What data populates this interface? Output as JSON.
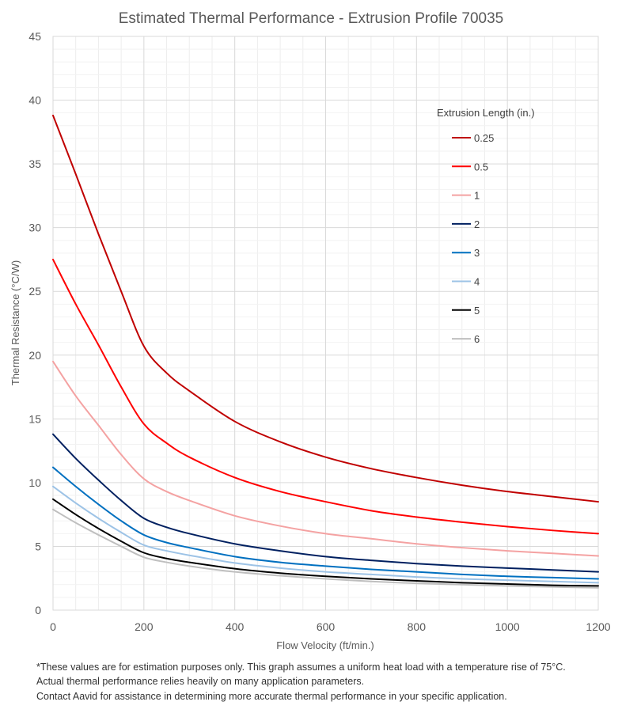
{
  "chart_data": {
    "type": "line",
    "title": "Estimated Thermal Performance - Extrusion Profile 70035",
    "xlabel": "Flow Velocity (ft/min.)",
    "ylabel": "Thermal Resistance (°C/W)",
    "xlim": [
      0,
      1200
    ],
    "ylim": [
      0,
      45
    ],
    "x_ticks": [
      "0",
      "200",
      "400",
      "600",
      "800",
      "1000",
      "1200"
    ],
    "y_ticks": [
      "0",
      "5",
      "10",
      "15",
      "20",
      "25",
      "30",
      "35",
      "40",
      "45"
    ],
    "grid": true,
    "legend_title": "Extrusion Length (in.)",
    "legend_position": "right",
    "x": [
      0,
      50,
      100,
      150,
      200,
      250,
      300,
      400,
      500,
      600,
      700,
      800,
      900,
      1000,
      1100,
      1200
    ],
    "series": [
      {
        "name": "0.25",
        "color": "#C00000",
        "values": [
          38.8,
          34.2,
          29.5,
          25.0,
          20.7,
          18.6,
          17.2,
          14.8,
          13.2,
          12.0,
          11.1,
          10.4,
          9.8,
          9.3,
          8.9,
          8.5
        ]
      },
      {
        "name": "0.5",
        "color": "#FF0000",
        "values": [
          27.5,
          24.0,
          20.8,
          17.5,
          14.6,
          13.1,
          12.0,
          10.4,
          9.3,
          8.5,
          7.8,
          7.3,
          6.9,
          6.55,
          6.25,
          6.0
        ]
      },
      {
        "name": "1",
        "color": "#F4A2A2",
        "values": [
          19.5,
          16.8,
          14.5,
          12.2,
          10.3,
          9.3,
          8.6,
          7.4,
          6.6,
          6.0,
          5.6,
          5.2,
          4.9,
          4.65,
          4.45,
          4.25
        ]
      },
      {
        "name": "2",
        "color": "#002060",
        "values": [
          13.8,
          11.9,
          10.2,
          8.6,
          7.2,
          6.5,
          6.0,
          5.2,
          4.65,
          4.2,
          3.9,
          3.65,
          3.45,
          3.3,
          3.15,
          3.0
        ]
      },
      {
        "name": "3",
        "color": "#0070C0",
        "values": [
          11.2,
          9.7,
          8.3,
          7.0,
          5.9,
          5.3,
          4.9,
          4.2,
          3.75,
          3.45,
          3.2,
          3.0,
          2.8,
          2.65,
          2.55,
          2.45
        ]
      },
      {
        "name": "4",
        "color": "#9DC3E6",
        "values": [
          9.7,
          8.4,
          7.2,
          6.1,
          5.1,
          4.65,
          4.3,
          3.7,
          3.3,
          3.0,
          2.8,
          2.6,
          2.45,
          2.35,
          2.25,
          2.15
        ]
      },
      {
        "name": "5",
        "color": "#000000",
        "values": [
          8.7,
          7.5,
          6.4,
          5.4,
          4.5,
          4.05,
          3.75,
          3.25,
          2.9,
          2.65,
          2.45,
          2.3,
          2.15,
          2.05,
          1.95,
          1.9
        ]
      },
      {
        "name": "6",
        "color": "#BFBFBF",
        "values": [
          7.9,
          6.85,
          5.9,
          5.0,
          4.15,
          3.75,
          3.45,
          3.0,
          2.7,
          2.45,
          2.25,
          2.1,
          2.0,
          1.9,
          1.82,
          1.75
        ]
      }
    ]
  },
  "notes": [
    "*These values are for estimation purposes only. This graph assumes a uniform heat load with a temperature rise of 75°C.",
    " Actual thermal performance relies heavily on many application parameters.",
    " Contact Aavid for assistance in determining more accurate thermal performance in your specific application."
  ]
}
